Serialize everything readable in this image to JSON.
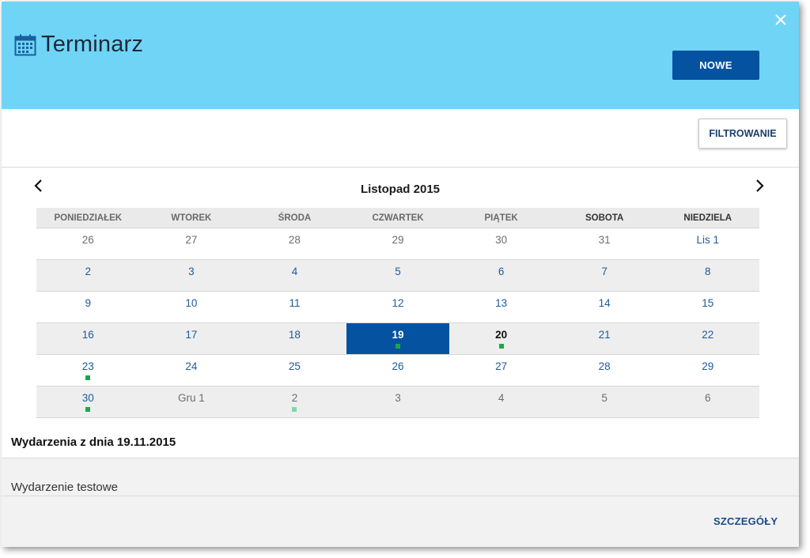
{
  "header": {
    "title": "Terminarz",
    "icon": "calendar-icon",
    "new_button_label": "NOWE",
    "close_icon": "close-icon",
    "background_color": "#70d4f7",
    "accent_color": "#0552a1"
  },
  "toolbar": {
    "filter_button_label": "FILTROWANIE"
  },
  "calendar": {
    "month_label": "Listopad 2015",
    "prev_icon": "chevron-left-icon",
    "next_icon": "chevron-right-icon",
    "weekdays": [
      "PONIEDZIAŁEK",
      "WTOREK",
      "ŚRODA",
      "CZWARTEK",
      "PIĄTEK",
      "SOBOTA",
      "NIEDZIELA"
    ],
    "weeks": [
      [
        {
          "label": "26",
          "state": "muted"
        },
        {
          "label": "27",
          "state": "muted"
        },
        {
          "label": "28",
          "state": "muted"
        },
        {
          "label": "29",
          "state": "muted"
        },
        {
          "label": "30",
          "state": "muted"
        },
        {
          "label": "31",
          "state": "muted"
        },
        {
          "label": "Lis 1",
          "state": "cur"
        }
      ],
      [
        {
          "label": "2",
          "state": "cur"
        },
        {
          "label": "3",
          "state": "cur"
        },
        {
          "label": "4",
          "state": "cur"
        },
        {
          "label": "5",
          "state": "cur"
        },
        {
          "label": "6",
          "state": "cur"
        },
        {
          "label": "7",
          "state": "cur"
        },
        {
          "label": "8",
          "state": "cur"
        }
      ],
      [
        {
          "label": "9",
          "state": "cur"
        },
        {
          "label": "10",
          "state": "cur"
        },
        {
          "label": "11",
          "state": "cur"
        },
        {
          "label": "12",
          "state": "cur"
        },
        {
          "label": "13",
          "state": "cur"
        },
        {
          "label": "14",
          "state": "cur"
        },
        {
          "label": "15",
          "state": "cur"
        }
      ],
      [
        {
          "label": "16",
          "state": "cur"
        },
        {
          "label": "17",
          "state": "cur"
        },
        {
          "label": "18",
          "state": "cur"
        },
        {
          "label": "19",
          "state": "selected",
          "event": "dark"
        },
        {
          "label": "20",
          "state": "today",
          "event": "dark"
        },
        {
          "label": "21",
          "state": "cur"
        },
        {
          "label": "22",
          "state": "cur"
        }
      ],
      [
        {
          "label": "23",
          "state": "cur",
          "event": "dark"
        },
        {
          "label": "24",
          "state": "cur"
        },
        {
          "label": "25",
          "state": "cur"
        },
        {
          "label": "26",
          "state": "cur"
        },
        {
          "label": "27",
          "state": "cur"
        },
        {
          "label": "28",
          "state": "cur"
        },
        {
          "label": "29",
          "state": "cur"
        }
      ],
      [
        {
          "label": "30",
          "state": "cur",
          "event": "dark"
        },
        {
          "label": "Gru 1",
          "state": "muted"
        },
        {
          "label": "2",
          "state": "muted",
          "event": "light"
        },
        {
          "label": "3",
          "state": "muted"
        },
        {
          "label": "4",
          "state": "muted"
        },
        {
          "label": "5",
          "state": "muted"
        },
        {
          "label": "6",
          "state": "muted"
        }
      ]
    ]
  },
  "events": {
    "title": "Wydarzenia z dnia 19.11.2015",
    "items": [
      {
        "name": "Wydarzenie testowe"
      }
    ],
    "details_label": "SZCZEGÓŁY"
  }
}
